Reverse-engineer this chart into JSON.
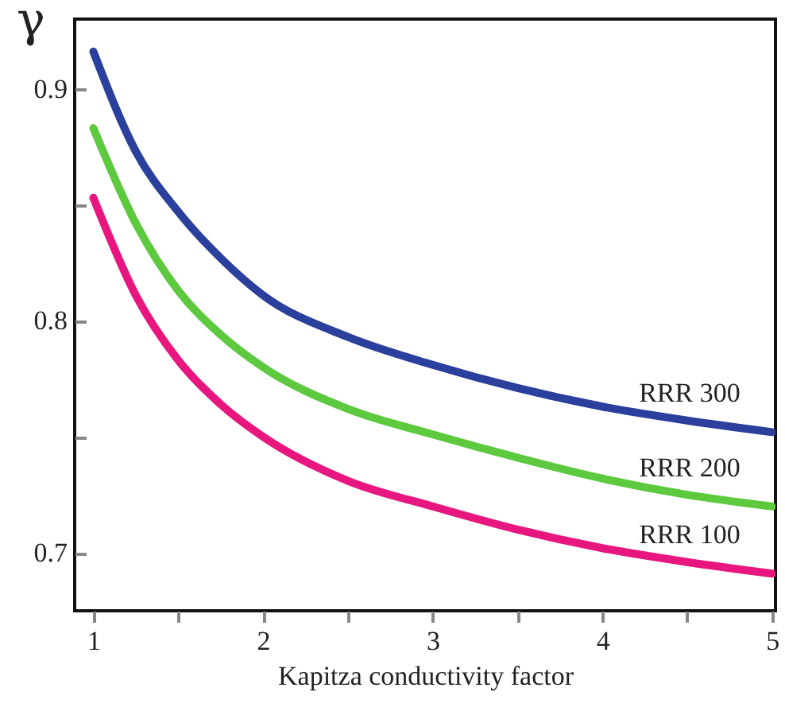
{
  "chart_data": {
    "type": "line",
    "xlabel": "Kapitza conductivity  factor",
    "ylabel": "γ",
    "x": [
      1,
      1.25,
      1.5,
      1.75,
      2,
      2.5,
      3,
      3.5,
      4,
      4.5,
      5
    ],
    "series": [
      {
        "name": "RRR 300",
        "color": "#2b3f9c",
        "values": [
          0.916,
          0.873,
          0.847,
          0.827,
          0.811,
          0.793,
          0.781,
          0.771,
          0.763,
          0.757,
          0.752
        ]
      },
      {
        "name": "RRR 200",
        "color": "#5cc93f",
        "values": [
          0.883,
          0.842,
          0.813,
          0.794,
          0.78,
          0.762,
          0.751,
          0.741,
          0.732,
          0.725,
          0.72
        ]
      },
      {
        "name": "RRR 100",
        "color": "#e8177f",
        "values": [
          0.853,
          0.811,
          0.783,
          0.764,
          0.75,
          0.731,
          0.72,
          0.71,
          0.702,
          0.696,
          0.691
        ]
      }
    ],
    "xlim": [
      0.89,
      5.02
    ],
    "ylim": [
      0.675,
      0.93
    ],
    "xticks": [
      1,
      {
        "value": 1.5,
        "label": null
      },
      2,
      {
        "value": 2.5,
        "label": null
      },
      3,
      {
        "value": 3.5,
        "label": null
      },
      4,
      {
        "value": 4.5,
        "label": null
      },
      5
    ],
    "yticks": [
      0.7,
      {
        "value": 0.75,
        "label": null
      },
      0.8,
      {
        "value": 0.85,
        "label": null
      },
      0.9
    ]
  }
}
